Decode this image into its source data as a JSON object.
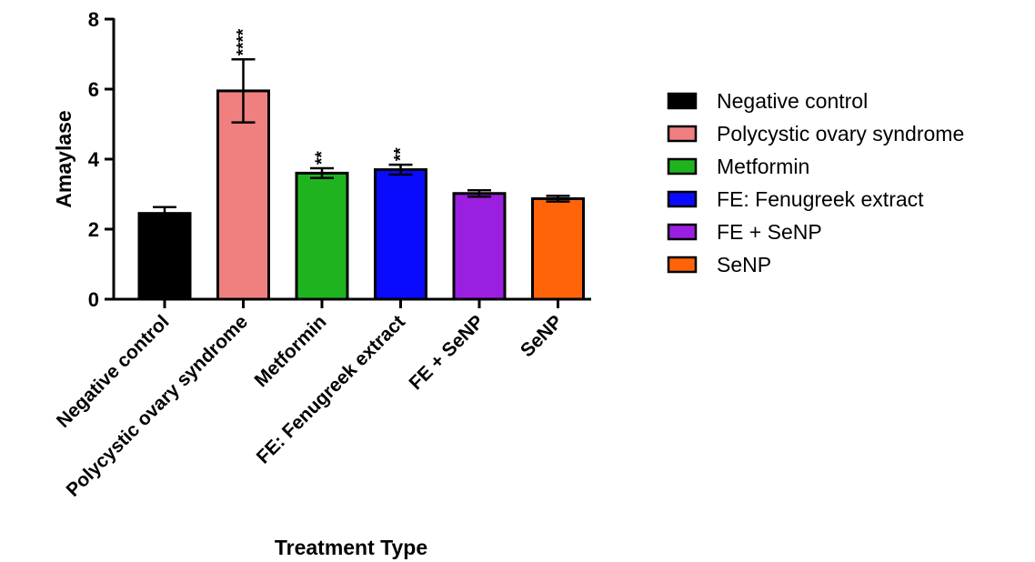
{
  "chart_data": {
    "type": "bar",
    "title": "",
    "xlabel": "Treatment Type",
    "ylabel": "Amaylase",
    "ylim": [
      0,
      8
    ],
    "yticks": [
      0,
      2,
      4,
      6,
      8
    ],
    "grid": false,
    "legend_position": "right",
    "categories": [
      "Negative control",
      "Polycystic ovary syndrome",
      "Metformin",
      "FE: Fenugreek extract",
      "FE + SeNP",
      "SeNP"
    ],
    "values": [
      2.45,
      5.95,
      3.6,
      3.7,
      3.02,
      2.87
    ],
    "errors": [
      0.18,
      0.9,
      0.14,
      0.14,
      0.09,
      0.08
    ],
    "significance": [
      "",
      "****",
      "**",
      "**",
      "",
      ""
    ],
    "colors": [
      "#000000",
      "#f08080",
      "#1fb41f",
      "#0a0aff",
      "#9b1fe0",
      "#ff6408"
    ],
    "legend": [
      "Negative control",
      "Polycystic ovary syndrome",
      "Metformin",
      "FE: Fenugreek extract",
      "FE + SeNP",
      "SeNP"
    ]
  }
}
